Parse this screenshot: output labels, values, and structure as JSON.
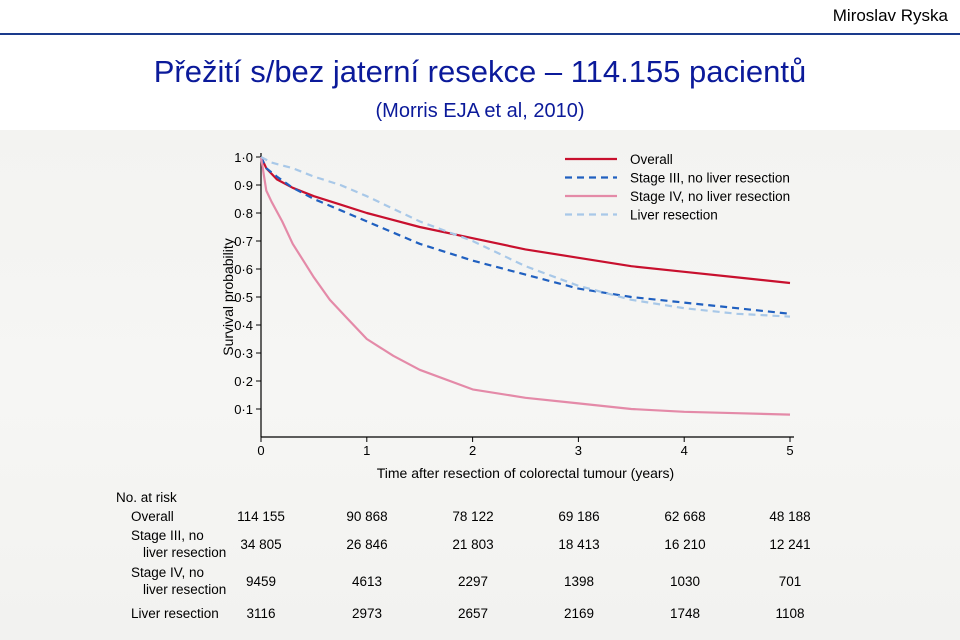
{
  "header": {
    "author": "Miroslav Ryska",
    "title": "Přežití s/bez jaterní resekce – 114.155 pacientů",
    "subtitle": "(Morris EJA et al, 2010)"
  },
  "chart_data": {
    "type": "line",
    "xlabel": "Time after resection of colorectal tumour (years)",
    "ylabel": "Survival probability",
    "xlim": [
      0,
      5
    ],
    "ylim": [
      0,
      1
    ],
    "x_ticks": [
      "0",
      "1",
      "2",
      "3",
      "4",
      "5"
    ],
    "y_ticks": [
      "0·1",
      "0·2",
      "0·3",
      "0·4",
      "0·5",
      "0·6",
      "0·7",
      "0·8",
      "0·9",
      "1·0"
    ],
    "legend_position": "top-right",
    "series": [
      {
        "name": "Overall",
        "color": "#c8102e",
        "dash": "solid",
        "x": [
          0,
          0.05,
          0.15,
          0.3,
          0.5,
          0.75,
          1,
          1.5,
          2,
          2.5,
          3,
          3.5,
          4,
          4.5,
          5
        ],
        "y": [
          1.0,
          0.96,
          0.92,
          0.89,
          0.86,
          0.83,
          0.8,
          0.75,
          0.71,
          0.67,
          0.64,
          0.61,
          0.59,
          0.57,
          0.55
        ]
      },
      {
        "name": "Stage III, no liver resection",
        "color": "#2060c0",
        "dash": "dashed",
        "x": [
          0,
          0.05,
          0.15,
          0.3,
          0.5,
          0.75,
          1,
          1.5,
          2,
          2.5,
          3,
          3.5,
          4,
          4.5,
          5
        ],
        "y": [
          1.0,
          0.96,
          0.93,
          0.89,
          0.85,
          0.81,
          0.77,
          0.69,
          0.63,
          0.58,
          0.53,
          0.5,
          0.48,
          0.46,
          0.44
        ]
      },
      {
        "name": "Stage IV, no liver resection",
        "color": "#e48aa8",
        "dash": "solid",
        "x": [
          0,
          0.05,
          0.1,
          0.2,
          0.3,
          0.4,
          0.5,
          0.65,
          0.8,
          1,
          1.25,
          1.5,
          2,
          2.5,
          3,
          3.5,
          4,
          4.5,
          5
        ],
        "y": [
          1.0,
          0.88,
          0.84,
          0.77,
          0.69,
          0.63,
          0.57,
          0.49,
          0.43,
          0.35,
          0.29,
          0.24,
          0.17,
          0.14,
          0.12,
          0.1,
          0.09,
          0.085,
          0.08
        ]
      },
      {
        "name": "Liver resection",
        "color": "#a8c8e8",
        "dash": "dashed",
        "x": [
          0,
          0.1,
          0.3,
          0.5,
          0.75,
          1,
          1.5,
          2,
          2.5,
          3,
          3.5,
          4,
          4.5,
          5
        ],
        "y": [
          1.0,
          0.98,
          0.96,
          0.93,
          0.9,
          0.86,
          0.77,
          0.7,
          0.61,
          0.54,
          0.49,
          0.46,
          0.44,
          0.43
        ]
      }
    ]
  },
  "risk_table": {
    "header": "No. at risk",
    "rows": [
      {
        "label": [
          "Overall"
        ],
        "values": [
          "114 155",
          "90 868",
          "78 122",
          "69 186",
          "62 668",
          "48 188"
        ]
      },
      {
        "label": [
          "Stage III, no",
          "liver resection"
        ],
        "values": [
          "34 805",
          "26 846",
          "21 803",
          "18 413",
          "16 210",
          "12 241"
        ]
      },
      {
        "label": [
          "Stage IV, no",
          "liver resection"
        ],
        "values": [
          "9459",
          "4613",
          "2297",
          "1398",
          "1030",
          "701"
        ]
      },
      {
        "label": [
          "Liver resection"
        ],
        "values": [
          "3116",
          "2973",
          "2657",
          "2169",
          "1748",
          "1108"
        ]
      }
    ]
  }
}
